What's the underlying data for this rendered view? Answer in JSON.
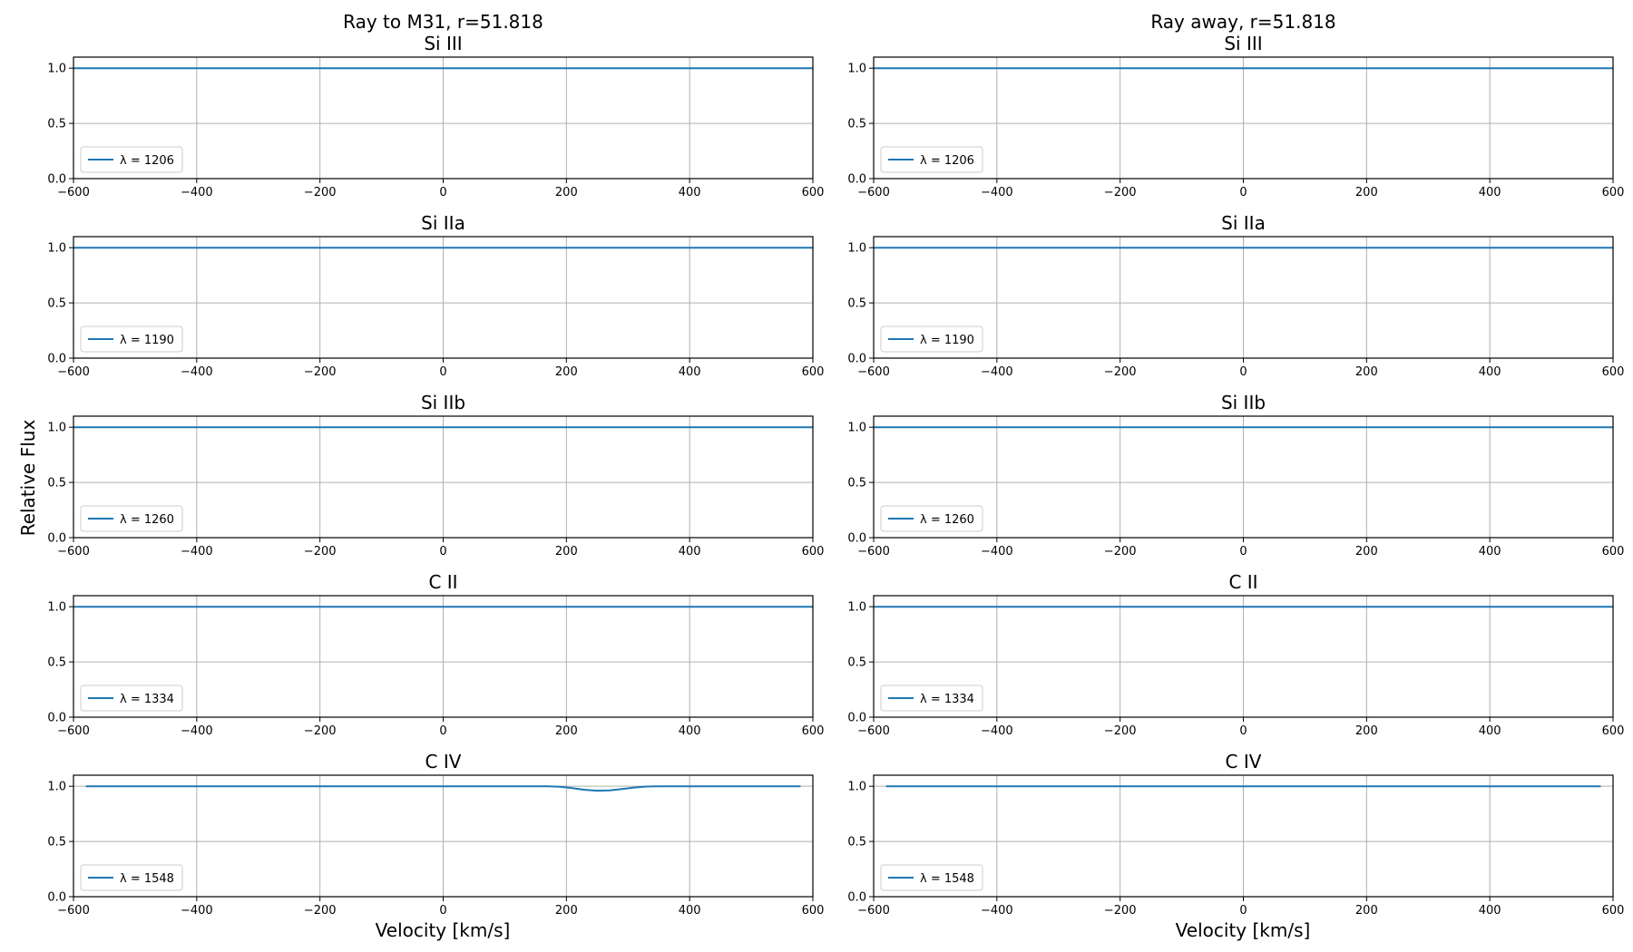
{
  "figure": {
    "ylabel": "Relative Flux",
    "xlabel": "Velocity [km/s]"
  },
  "colors": {
    "line": "#1f77b4",
    "grid": "#b0b0b0",
    "frame": "#000000"
  },
  "chart_data": [
    {
      "type": "line",
      "column": 0,
      "column_title": "Ray to M31, r=51.818",
      "panels": [
        {
          "title": "Si III",
          "legend": "λ = 1206",
          "xlim": [
            -600,
            600
          ],
          "ylim": [
            0,
            1.1
          ],
          "xticks": [
            -600,
            -400,
            -200,
            0,
            200,
            400,
            600
          ],
          "yticks": [
            0.0,
            0.5,
            1.0
          ],
          "series": [
            {
              "name": "λ = 1206",
              "x": [
                -600,
                600
              ],
              "y": [
                1.0,
                1.0
              ]
            }
          ]
        },
        {
          "title": "Si IIa",
          "legend": "λ = 1190",
          "xlim": [
            -600,
            600
          ],
          "ylim": [
            0,
            1.1
          ],
          "xticks": [
            -600,
            -400,
            -200,
            0,
            200,
            400,
            600
          ],
          "yticks": [
            0.0,
            0.5,
            1.0
          ],
          "series": [
            {
              "name": "λ = 1190",
              "x": [
                -600,
                600
              ],
              "y": [
                1.0,
                1.0
              ]
            }
          ]
        },
        {
          "title": "Si IIb",
          "legend": "λ = 1260",
          "xlim": [
            -600,
            600
          ],
          "ylim": [
            0,
            1.1
          ],
          "xticks": [
            -600,
            -400,
            -200,
            0,
            200,
            400,
            600
          ],
          "yticks": [
            0.0,
            0.5,
            1.0
          ],
          "series": [
            {
              "name": "λ = 1260",
              "x": [
                -600,
                600
              ],
              "y": [
                1.0,
                1.0
              ]
            }
          ]
        },
        {
          "title": "C II",
          "legend": "λ = 1334",
          "xlim": [
            -600,
            600
          ],
          "ylim": [
            0,
            1.1
          ],
          "xticks": [
            -600,
            -400,
            -200,
            0,
            200,
            400,
            600
          ],
          "yticks": [
            0.0,
            0.5,
            1.0
          ],
          "series": [
            {
              "name": "λ = 1334",
              "x": [
                -600,
                600
              ],
              "y": [
                1.0,
                1.0
              ]
            }
          ]
        },
        {
          "title": "C IV",
          "legend": "λ = 1548",
          "xlim": [
            -600,
            600
          ],
          "ylim": [
            0,
            1.1
          ],
          "xticks": [
            -600,
            -400,
            -200,
            0,
            200,
            400,
            600
          ],
          "yticks": [
            0.0,
            0.5,
            1.0
          ],
          "series": [
            {
              "name": "λ = 1548",
              "x": [
                -580,
                0,
                170,
                190,
                210,
                230,
                250,
                270,
                290,
                310,
                330,
                350,
                580
              ],
              "y": [
                1.0,
                1.0,
                1.0,
                0.995,
                0.983,
                0.968,
                0.96,
                0.963,
                0.975,
                0.988,
                0.997,
                1.0,
                1.0
              ]
            }
          ]
        }
      ]
    },
    {
      "type": "line",
      "column": 1,
      "column_title": "Ray away, r=51.818",
      "panels": [
        {
          "title": "Si III",
          "legend": "λ = 1206",
          "xlim": [
            -600,
            600
          ],
          "ylim": [
            0,
            1.1
          ],
          "xticks": [
            -600,
            -400,
            -200,
            0,
            200,
            400,
            600
          ],
          "yticks": [
            0.0,
            0.5,
            1.0
          ],
          "series": [
            {
              "name": "λ = 1206",
              "x": [
                -600,
                600
              ],
              "y": [
                1.0,
                1.0
              ]
            }
          ]
        },
        {
          "title": "Si IIa",
          "legend": "λ = 1190",
          "xlim": [
            -600,
            600
          ],
          "ylim": [
            0,
            1.1
          ],
          "xticks": [
            -600,
            -400,
            -200,
            0,
            200,
            400,
            600
          ],
          "yticks": [
            0.0,
            0.5,
            1.0
          ],
          "series": [
            {
              "name": "λ = 1190",
              "x": [
                -600,
                600
              ],
              "y": [
                1.0,
                1.0
              ]
            }
          ]
        },
        {
          "title": "Si IIb",
          "legend": "λ = 1260",
          "xlim": [
            -600,
            600
          ],
          "ylim": [
            0,
            1.1
          ],
          "xticks": [
            -600,
            -400,
            -200,
            0,
            200,
            400,
            600
          ],
          "yticks": [
            0.0,
            0.5,
            1.0
          ],
          "series": [
            {
              "name": "λ = 1260",
              "x": [
                -600,
                600
              ],
              "y": [
                1.0,
                1.0
              ]
            }
          ]
        },
        {
          "title": "C II",
          "legend": "λ = 1334",
          "xlim": [
            -600,
            600
          ],
          "ylim": [
            0,
            1.1
          ],
          "xticks": [
            -600,
            -400,
            -200,
            0,
            200,
            400,
            600
          ],
          "yticks": [
            0.0,
            0.5,
            1.0
          ],
          "series": [
            {
              "name": "λ = 1334",
              "x": [
                -600,
                600
              ],
              "y": [
                1.0,
                1.0
              ]
            }
          ]
        },
        {
          "title": "C IV",
          "legend": "λ = 1548",
          "xlim": [
            -600,
            600
          ],
          "ylim": [
            0,
            1.1
          ],
          "xticks": [
            -600,
            -400,
            -200,
            0,
            200,
            400,
            600
          ],
          "yticks": [
            0.0,
            0.5,
            1.0
          ],
          "series": [
            {
              "name": "λ = 1548",
              "x": [
                -580,
                580
              ],
              "y": [
                1.0,
                1.0
              ]
            }
          ]
        }
      ]
    }
  ]
}
